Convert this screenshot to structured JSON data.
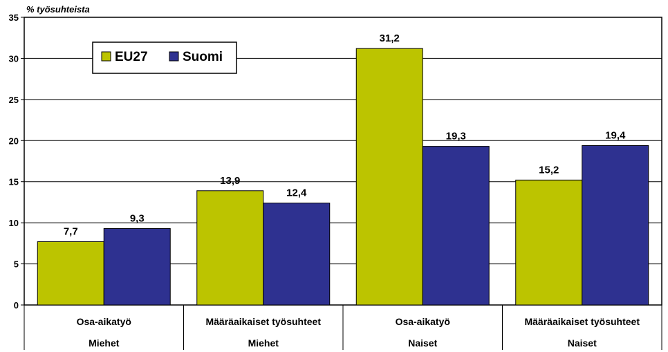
{
  "chart_data": {
    "type": "bar",
    "ylabel": "% työsuhteista",
    "ylim": [
      0,
      35
    ],
    "yticks": [
      0,
      5,
      10,
      15,
      20,
      25,
      30,
      35
    ],
    "grid": true,
    "legend_position": "top-left",
    "categories": [
      {
        "label": "Osa-aikatyö",
        "group": "Miehet"
      },
      {
        "label": "Määräaikaiset työsuhteet",
        "group": "Miehet"
      },
      {
        "label": "Osa-aikatyö",
        "group": "Naiset"
      },
      {
        "label": "Määräaikaiset työsuhteet",
        "group": "Naiset"
      }
    ],
    "series": [
      {
        "name": "EU27",
        "color": "#BCC400",
        "values": [
          7.7,
          13.9,
          31.2,
          15.2
        ],
        "labels": [
          "7,7",
          "13,9",
          "31,2",
          "15,2"
        ]
      },
      {
        "name": "Suomi",
        "color": "#2E3190",
        "values": [
          9.3,
          12.4,
          19.3,
          19.4
        ],
        "labels": [
          "9,3",
          "12,4",
          "19,3",
          "19,4"
        ]
      }
    ]
  }
}
